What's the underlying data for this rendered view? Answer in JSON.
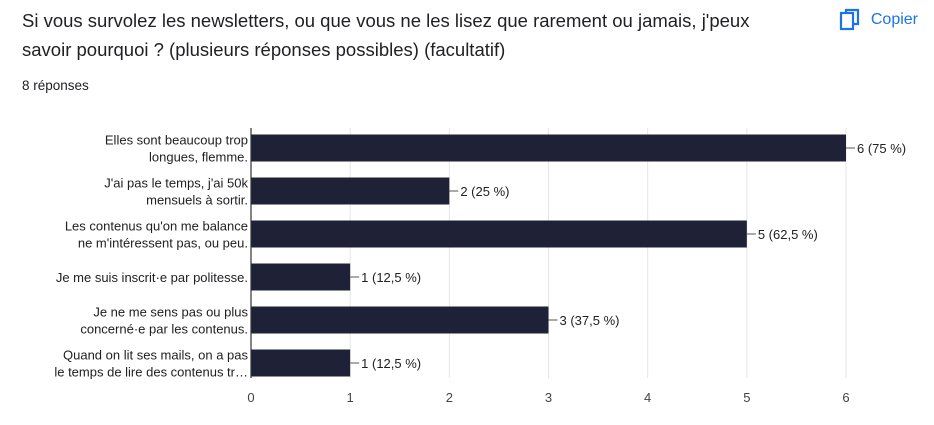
{
  "question": {
    "title": "Si vous survolez les newsletters, ou que vous ne les lisez que rarement ou jamais, j'peux savoir pourquoi ? (plusieurs réponses possibles) (facultatif)",
    "response_count": "8 réponses"
  },
  "copy_button": {
    "label": "Copier",
    "icon": "copy-icon"
  },
  "colors": {
    "bar": "#1f2136",
    "accent": "#1a73e8",
    "grid": "#e6e6e6",
    "axis": "#333333",
    "text": "#202124"
  },
  "chart_data": {
    "type": "bar",
    "orientation": "horizontal",
    "title": "",
    "xlabel": "",
    "ylabel": "",
    "xlim": [
      0,
      6
    ],
    "xticks": [
      0,
      1,
      2,
      3,
      4,
      5,
      6
    ],
    "grid": true,
    "categories": [
      [
        "Elles sont beaucoup trop",
        "longues, flemme."
      ],
      [
        "J'ai pas le temps, j'ai 50k",
        "mensuels à sortir."
      ],
      [
        "Les contenus qu'on me balance",
        "ne m'intéressent pas, ou peu."
      ],
      [
        "Je me suis inscrit·e par politesse."
      ],
      [
        "Je ne me sens pas ou plus",
        "concerné·e par les contenus."
      ],
      [
        "Quand on lit ses mails, on a pas",
        "le temps de lire des contenus tr…"
      ]
    ],
    "values": [
      6,
      2,
      5,
      1,
      3,
      1
    ],
    "data_labels": [
      "6 (75 %)",
      "2 (25 %)",
      "5 (62,5 %)",
      "1 (12,5 %)",
      "3 (37,5 %)",
      "1 (12,5 %)"
    ]
  }
}
